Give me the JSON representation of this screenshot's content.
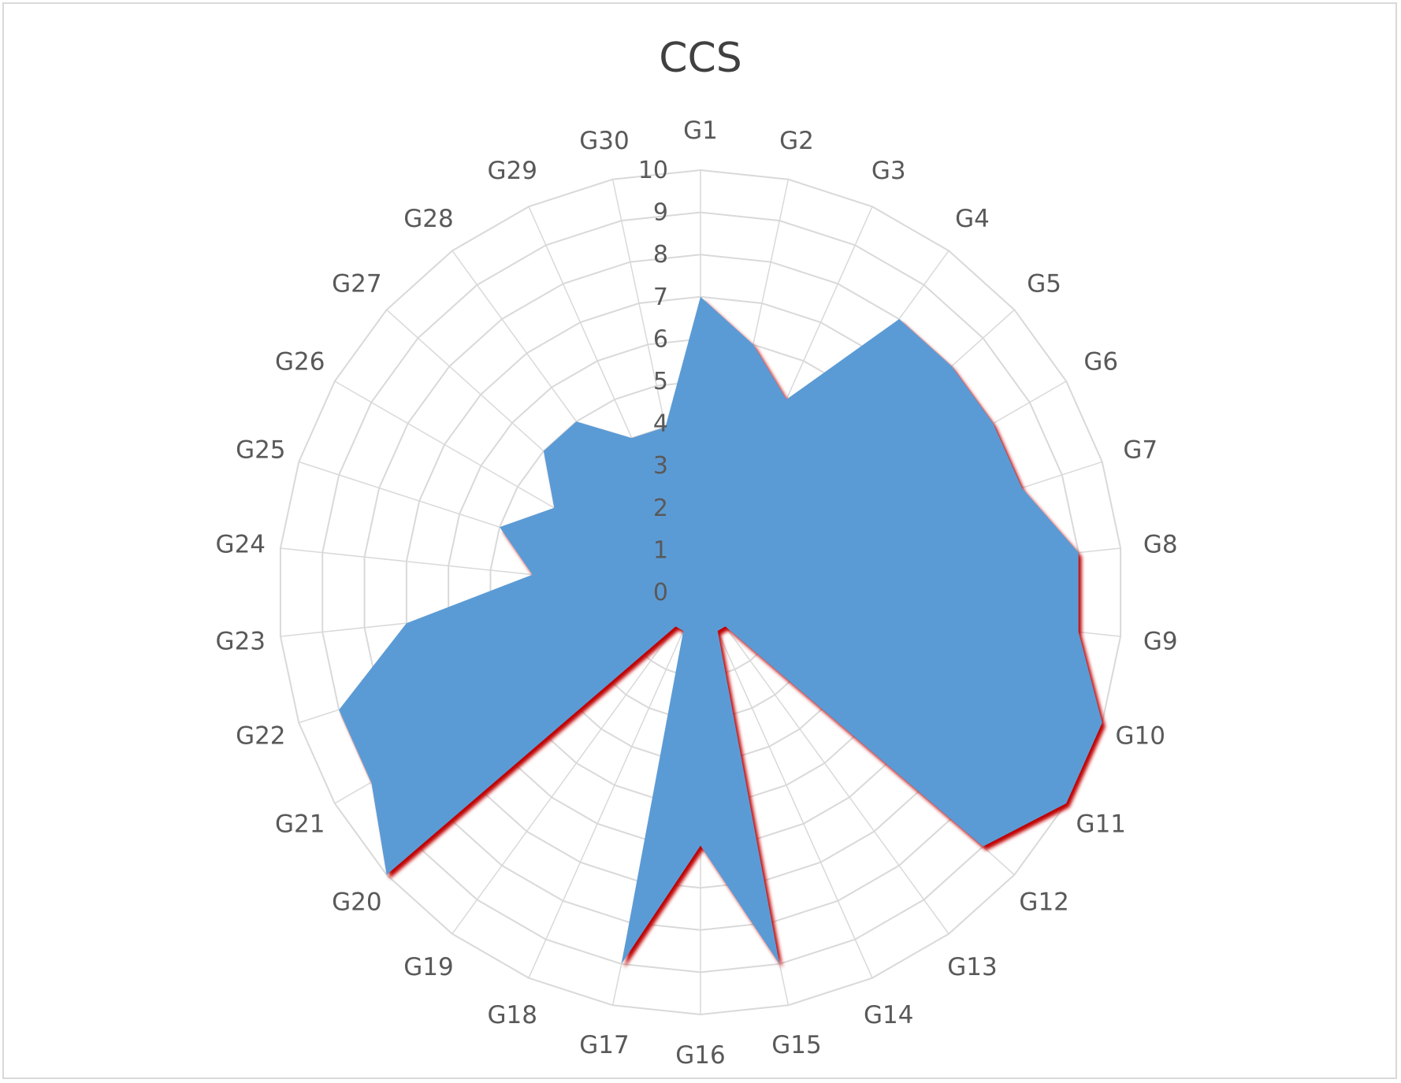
{
  "chart_data": {
    "type": "radar",
    "title": "CCS",
    "categories": [
      "G1",
      "G2",
      "G3",
      "G4",
      "G5",
      "G6",
      "G7",
      "G8",
      "G9",
      "G10",
      "G11",
      "G12",
      "G13",
      "G14",
      "G15",
      "G16",
      "G17",
      "G18",
      "G19",
      "G20",
      "G21",
      "G22",
      "G23",
      "G24",
      "G25",
      "G26",
      "G27",
      "G28",
      "G29",
      "G30"
    ],
    "series": [
      {
        "values": [
          7,
          6,
          5,
          8,
          8,
          8,
          8,
          9,
          9,
          10,
          10,
          9,
          1,
          1,
          9,
          6,
          9,
          1,
          1,
          10,
          9,
          9,
          7,
          4,
          5,
          4,
          5,
          5,
          4,
          4
        ],
        "color": "#5b9bd5",
        "shadow_color": "#c00000"
      }
    ],
    "rlim": [
      0,
      10
    ],
    "ticks": [
      "0",
      "1",
      "2",
      "3",
      "4",
      "5",
      "6",
      "7",
      "8",
      "9",
      "10"
    ],
    "grid": true,
    "grid_color": "#d9d9d9"
  }
}
